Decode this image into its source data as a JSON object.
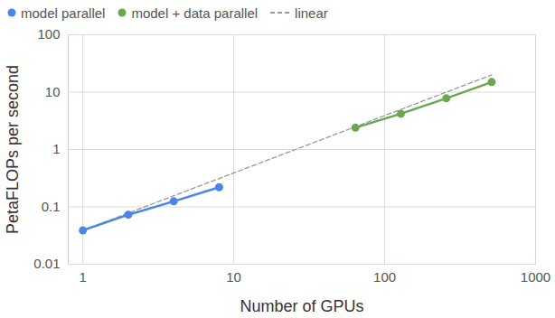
{
  "chart_data": {
    "type": "line",
    "x_label": "Number of GPUs",
    "y_label": "PetaFLOPs per second",
    "log": true,
    "grid": true,
    "legend": "top",
    "xlim": [
      0.8,
      1000
    ],
    "xticks": [
      1,
      10,
      100,
      1000
    ],
    "ylim": [
      0.01,
      100
    ],
    "yticks": [
      0.01,
      0.1,
      1,
      10,
      100
    ],
    "series": [
      {
        "name": "model parallel",
        "color": "#4a86e8",
        "marker": "circle",
        "line_style": "solid",
        "x": [
          1,
          2,
          4,
          8
        ],
        "values": [
          0.039,
          0.073,
          0.125,
          0.22
        ]
      },
      {
        "name": "model + data parallel",
        "color": "#6aa84f",
        "marker": "circle",
        "line_style": "solid",
        "x": [
          64,
          128,
          256,
          512
        ],
        "values": [
          2.4,
          4.2,
          7.8,
          15
        ]
      },
      {
        "name": "linear",
        "color": "#999999",
        "marker": "none",
        "line_style": "dashed",
        "x": [
          1,
          512
        ],
        "values": [
          0.039,
          20
        ]
      }
    ]
  }
}
